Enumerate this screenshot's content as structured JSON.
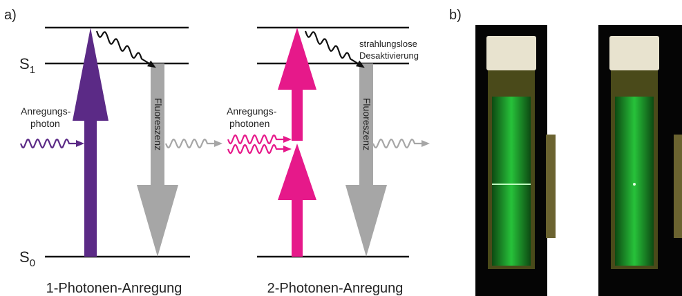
{
  "panel_a": {
    "label": "a)",
    "levels": [
      {
        "symbol": "S",
        "index": "1"
      },
      {
        "symbol": "S",
        "index": "0"
      }
    ],
    "one_photon": {
      "title": "1-Photonen-Anregung",
      "excitation_label": [
        "Anregungs-",
        "photon"
      ],
      "emission_label": "Fluoreszenz"
    },
    "two_photon": {
      "title": "2-Photonen-Anregung",
      "excitation_label": [
        "Anregungs-",
        "photonen"
      ],
      "emission_label": "Fluoreszenz",
      "nonradiative_label": [
        "strahlungslose",
        "Desaktivierung"
      ]
    }
  },
  "panel_b": {
    "label": "b)"
  }
}
